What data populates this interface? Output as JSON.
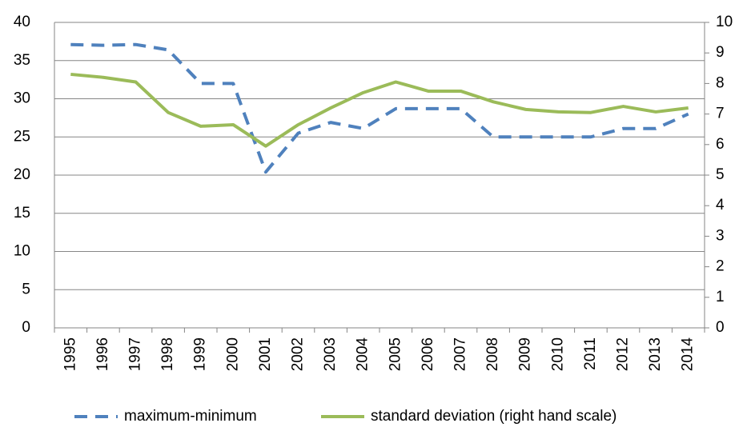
{
  "chart_data": {
    "type": "line",
    "categories": [
      "1995",
      "1996",
      "1997",
      "1998",
      "1999",
      "2000",
      "2001",
      "2002",
      "2003",
      "2004",
      "2005",
      "2006",
      "2007",
      "2008",
      "2009",
      "2010",
      "2011",
      "2012",
      "2013",
      "2014"
    ],
    "series": [
      {
        "name": "maximum-minimum",
        "color": "#4f81bd",
        "dashed": true,
        "values": [
          37.1,
          37.0,
          37.1,
          36.4,
          32.0,
          32.0,
          20.4,
          25.5,
          26.9,
          26.1,
          28.7,
          28.7,
          28.7,
          25.0,
          25.0,
          25.0,
          25.0,
          26.1,
          26.1,
          28.0
        ]
      },
      {
        "name": "standard deviation (right hand scale)",
        "color": "#9bbb59",
        "axis": "y2",
        "values": [
          8.3,
          8.2,
          8.05,
          7.05,
          6.6,
          6.65,
          5.95,
          6.65,
          7.2,
          7.7,
          8.05,
          7.75,
          7.75,
          7.4,
          7.15,
          7.07,
          7.05,
          7.25,
          7.07,
          7.2
        ]
      }
    ],
    "ylim": [
      0,
      40
    ],
    "yticks": [
      0,
      5,
      10,
      15,
      20,
      25,
      30,
      35,
      40
    ],
    "y2lim": [
      0,
      10
    ],
    "y2ticks": [
      0,
      1,
      2,
      3,
      4,
      5,
      6,
      7,
      8,
      9,
      10
    ],
    "grid": true,
    "legend": "bottom"
  }
}
